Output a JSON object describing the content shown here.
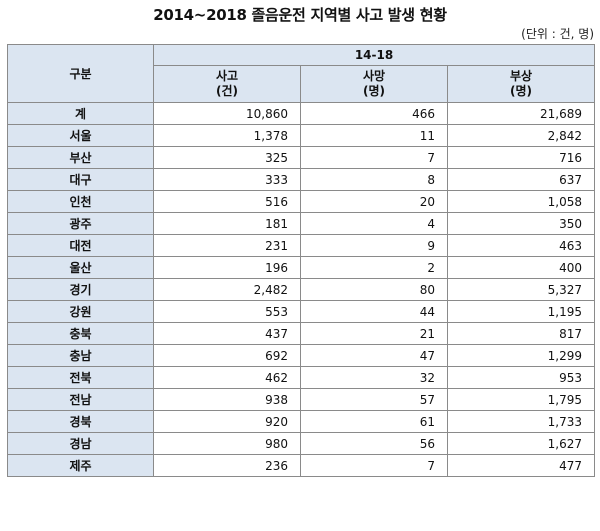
{
  "title": "2014~2018 졸음운전 지역별 사고 발생 현황",
  "unit": "(단위 : 건, 명)",
  "header": {
    "category": "구분",
    "period": "14-18",
    "col_accidents": "사고",
    "col_accidents_unit": "(건)",
    "col_deaths": "사망",
    "col_deaths_unit": "(명)",
    "col_injuries": "부상",
    "col_injuries_unit": "(명)"
  },
  "rows": [
    {
      "region": "계",
      "accidents": "10,860",
      "deaths": "466",
      "injuries": "21,689"
    },
    {
      "region": "서울",
      "accidents": "1,378",
      "deaths": "11",
      "injuries": "2,842"
    },
    {
      "region": "부산",
      "accidents": "325",
      "deaths": "7",
      "injuries": "716"
    },
    {
      "region": "대구",
      "accidents": "333",
      "deaths": "8",
      "injuries": "637"
    },
    {
      "region": "인천",
      "accidents": "516",
      "deaths": "20",
      "injuries": "1,058"
    },
    {
      "region": "광주",
      "accidents": "181",
      "deaths": "4",
      "injuries": "350"
    },
    {
      "region": "대전",
      "accidents": "231",
      "deaths": "9",
      "injuries": "463"
    },
    {
      "region": "울산",
      "accidents": "196",
      "deaths": "2",
      "injuries": "400"
    },
    {
      "region": "경기",
      "accidents": "2,482",
      "deaths": "80",
      "injuries": "5,327"
    },
    {
      "region": "강원",
      "accidents": "553",
      "deaths": "44",
      "injuries": "1,195"
    },
    {
      "region": "충북",
      "accidents": "437",
      "deaths": "21",
      "injuries": "817"
    },
    {
      "region": "충남",
      "accidents": "692",
      "deaths": "47",
      "injuries": "1,299"
    },
    {
      "region": "전북",
      "accidents": "462",
      "deaths": "32",
      "injuries": "953"
    },
    {
      "region": "전남",
      "accidents": "938",
      "deaths": "57",
      "injuries": "1,795"
    },
    {
      "region": "경북",
      "accidents": "920",
      "deaths": "61",
      "injuries": "1,733"
    },
    {
      "region": "경남",
      "accidents": "980",
      "deaths": "56",
      "injuries": "1,627"
    },
    {
      "region": "제주",
      "accidents": "236",
      "deaths": "7",
      "injuries": "477"
    }
  ]
}
